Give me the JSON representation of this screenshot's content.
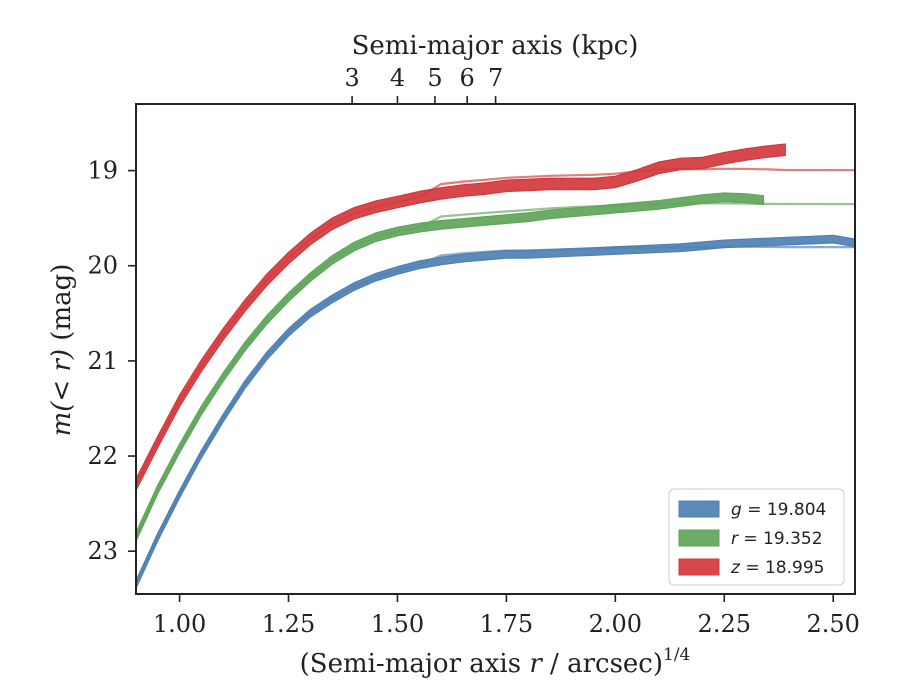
{
  "chart_data": {
    "type": "line",
    "xlabel_main": "(Semi-major axis ",
    "xlabel_var": "r",
    "xlabel_rest": " / arcsec)",
    "xlabel_sup": "1/4",
    "x2label": "Semi-major axis (kpc)",
    "ylabel_pre": "m",
    "ylabel_expr": "(< r)",
    "ylabel_unit": " (mag)",
    "xlim": [
      0.9,
      2.55
    ],
    "ylim": [
      23.45,
      18.3
    ],
    "y_inverted": true,
    "xticks": [
      "1.00",
      "1.25",
      "1.50",
      "1.75",
      "2.00",
      "2.25",
      "2.50"
    ],
    "xtick_values": [
      1.0,
      1.25,
      1.5,
      1.75,
      2.0,
      2.25,
      2.5
    ],
    "yticks": [
      "19",
      "20",
      "21",
      "22",
      "23"
    ],
    "ytick_values": [
      19,
      20,
      21,
      22,
      23
    ],
    "x2ticks": [
      "3",
      "4",
      "5",
      "6",
      "7"
    ],
    "x2tick_values": [
      3,
      4,
      5,
      6,
      7
    ],
    "legend_position": "lower-right",
    "series": [
      {
        "name": "g = 19.804",
        "legend_var": "g",
        "legend_val": "= 19.804",
        "color": "#4e80b3",
        "band_halfwidth": 0.04,
        "model_asymptote": 19.804,
        "x": [
          0.9,
          0.95,
          1.0,
          1.05,
          1.1,
          1.15,
          1.2,
          1.25,
          1.3,
          1.35,
          1.4,
          1.45,
          1.5,
          1.55,
          1.6,
          1.65,
          1.7,
          1.75,
          1.8,
          1.85,
          1.9,
          1.95,
          2.0,
          2.05,
          2.1,
          2.15,
          2.2,
          2.25,
          2.3,
          2.35,
          2.4,
          2.45,
          2.5,
          2.55
        ],
        "y": [
          23.35,
          22.85,
          22.4,
          21.98,
          21.6,
          21.25,
          20.95,
          20.7,
          20.5,
          20.35,
          20.22,
          20.12,
          20.05,
          19.99,
          19.95,
          19.92,
          19.9,
          19.88,
          19.88,
          19.87,
          19.86,
          19.85,
          19.84,
          19.83,
          19.82,
          19.81,
          19.79,
          19.77,
          19.76,
          19.75,
          19.74,
          19.73,
          19.72,
          19.76
        ]
      },
      {
        "name": "r = 19.352",
        "legend_var": "r",
        "legend_val": "= 19.352",
        "color": "#5fa55a",
        "band_halfwidth": 0.045,
        "model_asymptote": 19.352,
        "x": [
          0.9,
          0.95,
          1.0,
          1.05,
          1.1,
          1.15,
          1.2,
          1.25,
          1.3,
          1.35,
          1.4,
          1.45,
          1.5,
          1.55,
          1.6,
          1.65,
          1.7,
          1.75,
          1.8,
          1.85,
          1.9,
          1.95,
          2.0,
          2.05,
          2.1,
          2.15,
          2.2,
          2.25,
          2.3,
          2.34
        ],
        "y": [
          22.85,
          22.35,
          21.92,
          21.52,
          21.17,
          20.85,
          20.57,
          20.33,
          20.12,
          19.94,
          19.8,
          19.7,
          19.64,
          19.6,
          19.57,
          19.55,
          19.53,
          19.51,
          19.49,
          19.46,
          19.44,
          19.42,
          19.4,
          19.38,
          19.36,
          19.33,
          19.3,
          19.28,
          19.29,
          19.31
        ]
      },
      {
        "name": "z = 18.995",
        "legend_var": "z",
        "legend_val": "= 18.995",
        "color": "#d2383c",
        "band_halfwidth": 0.06,
        "model_asymptote": 18.995,
        "x": [
          0.9,
          0.95,
          1.0,
          1.05,
          1.1,
          1.15,
          1.2,
          1.25,
          1.3,
          1.35,
          1.4,
          1.45,
          1.5,
          1.55,
          1.6,
          1.65,
          1.7,
          1.75,
          1.8,
          1.85,
          1.9,
          1.95,
          2.0,
          2.05,
          2.1,
          2.15,
          2.2,
          2.25,
          2.3,
          2.35,
          2.39
        ],
        "y": [
          22.3,
          21.85,
          21.42,
          21.05,
          20.72,
          20.42,
          20.15,
          19.92,
          19.72,
          19.56,
          19.45,
          19.38,
          19.33,
          19.28,
          19.24,
          19.21,
          19.19,
          19.16,
          19.15,
          19.14,
          19.14,
          19.14,
          19.12,
          19.05,
          18.97,
          18.93,
          18.92,
          18.87,
          18.83,
          18.8,
          18.78
        ]
      }
    ]
  }
}
